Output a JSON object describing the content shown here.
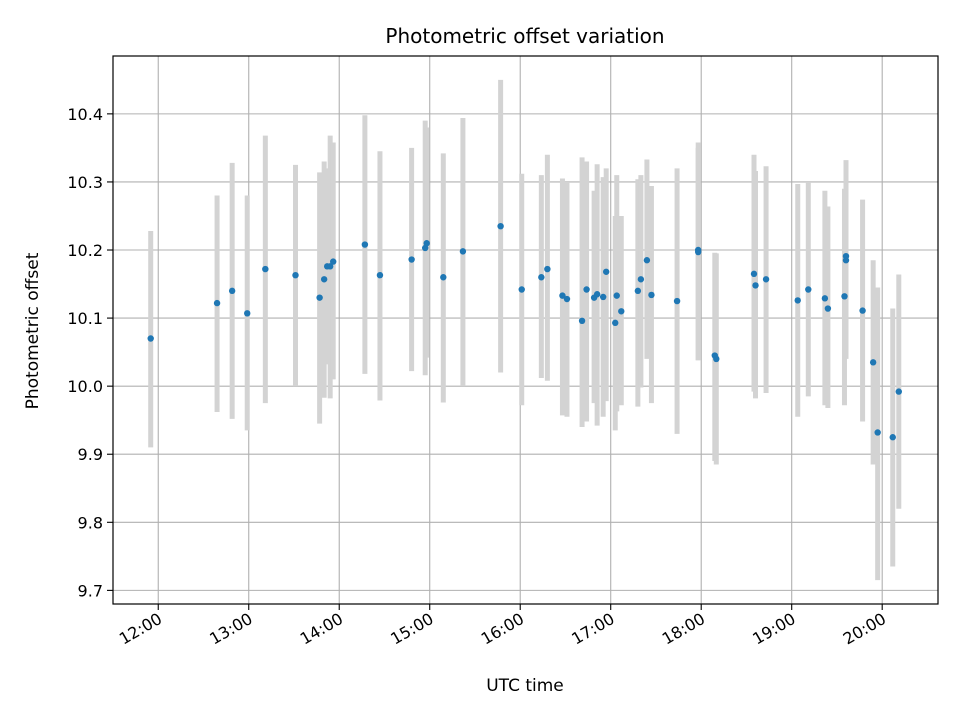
{
  "chart_data": {
    "type": "scatter",
    "title": "Photometric offset variation",
    "xlabel": "UTC time",
    "ylabel": "Photometric offset",
    "x_ticks": [
      "12:00",
      "13:00",
      "14:00",
      "15:00",
      "16:00",
      "17:00",
      "18:00",
      "19:00",
      "20:00"
    ],
    "y_ticks": [
      "9.7",
      "9.8",
      "9.9",
      "10.0",
      "10.1",
      "10.2",
      "10.3",
      "10.4"
    ],
    "xlim": [
      "11:30",
      "20:37"
    ],
    "ylim": [
      9.68,
      10.485
    ],
    "grid": true,
    "colors": {
      "points": "#1f77b4",
      "errorbars": "#d3d3d3",
      "grid": "#b0b0b0"
    },
    "series": [
      {
        "x": [
          "11:55",
          "12:39",
          "12:49",
          "12:59",
          "13:11",
          "13:31",
          "13:47",
          "13:50",
          "13:52",
          "13:54",
          "13:56",
          "14:17",
          "14:27",
          "14:48",
          "14:57",
          "14:58",
          "15:09",
          "15:22",
          "15:47",
          "16:01",
          "16:14",
          "16:18",
          "16:28",
          "16:31",
          "16:41",
          "16:44",
          "16:49",
          "16:51",
          "16:55",
          "16:57",
          "17:03",
          "17:04",
          "17:07",
          "17:18",
          "17:20",
          "17:24",
          "17:27",
          "17:44",
          "17:58",
          "17:58",
          "18:09",
          "18:10",
          "18:35",
          "18:36",
          "18:43",
          "19:04",
          "19:11",
          "19:22",
          "19:24",
          "19:35",
          "19:36",
          "19:36",
          "19:47",
          "19:54",
          "19:57",
          "20:07",
          "20:11"
        ],
        "y": [
          10.07,
          10.122,
          10.14,
          10.107,
          10.172,
          10.163,
          10.13,
          10.157,
          10.176,
          10.176,
          10.183,
          10.208,
          10.163,
          10.186,
          10.203,
          10.21,
          10.16,
          10.198,
          10.235,
          10.142,
          10.16,
          10.172,
          10.133,
          10.128,
          10.096,
          10.142,
          10.13,
          10.135,
          10.131,
          10.168,
          10.093,
          10.133,
          10.11,
          10.14,
          10.157,
          10.185,
          10.134,
          10.125,
          10.2,
          10.197,
          10.045,
          10.04,
          10.165,
          10.148,
          10.157,
          10.126,
          10.142,
          10.129,
          10.114,
          10.132,
          10.185,
          10.191,
          10.111,
          10.035,
          9.932,
          9.925,
          9.992
        ],
        "yerr_low": [
          9.91,
          9.962,
          9.952,
          9.935,
          9.975,
          10.0,
          9.945,
          9.983,
          10.032,
          9.982,
          10.01,
          10.018,
          9.979,
          10.022,
          10.016,
          10.042,
          9.976,
          10.0,
          10.02,
          9.972,
          10.012,
          10.008,
          9.957,
          9.955,
          9.94,
          9.948,
          9.975,
          9.942,
          9.955,
          9.978,
          9.935,
          9.963,
          9.972,
          9.97,
          9.998,
          10.04,
          9.975,
          9.93,
          10.038,
          10.038,
          9.89,
          9.885,
          9.992,
          9.982,
          9.99,
          9.955,
          9.985,
          9.972,
          9.968,
          9.972,
          10.04,
          10.05,
          9.948,
          9.885,
          9.715,
          9.735,
          9.82
        ],
        "yerr_high": [
          10.228,
          10.28,
          10.328,
          10.28,
          10.368,
          10.325,
          10.314,
          10.33,
          10.32,
          10.368,
          10.358,
          10.398,
          10.345,
          10.35,
          10.39,
          10.38,
          10.342,
          10.394,
          10.45,
          10.312,
          10.31,
          10.34,
          10.305,
          10.3,
          10.336,
          10.33,
          10.287,
          10.326,
          10.307,
          10.32,
          10.25,
          10.31,
          10.25,
          10.304,
          10.31,
          10.333,
          10.294,
          10.32,
          10.358,
          10.35,
          10.196,
          10.195,
          10.34,
          10.316,
          10.323,
          10.297,
          10.3,
          10.287,
          10.264,
          10.29,
          10.33,
          10.332,
          10.274,
          10.185,
          10.145,
          10.114,
          10.164
        ]
      }
    ]
  }
}
